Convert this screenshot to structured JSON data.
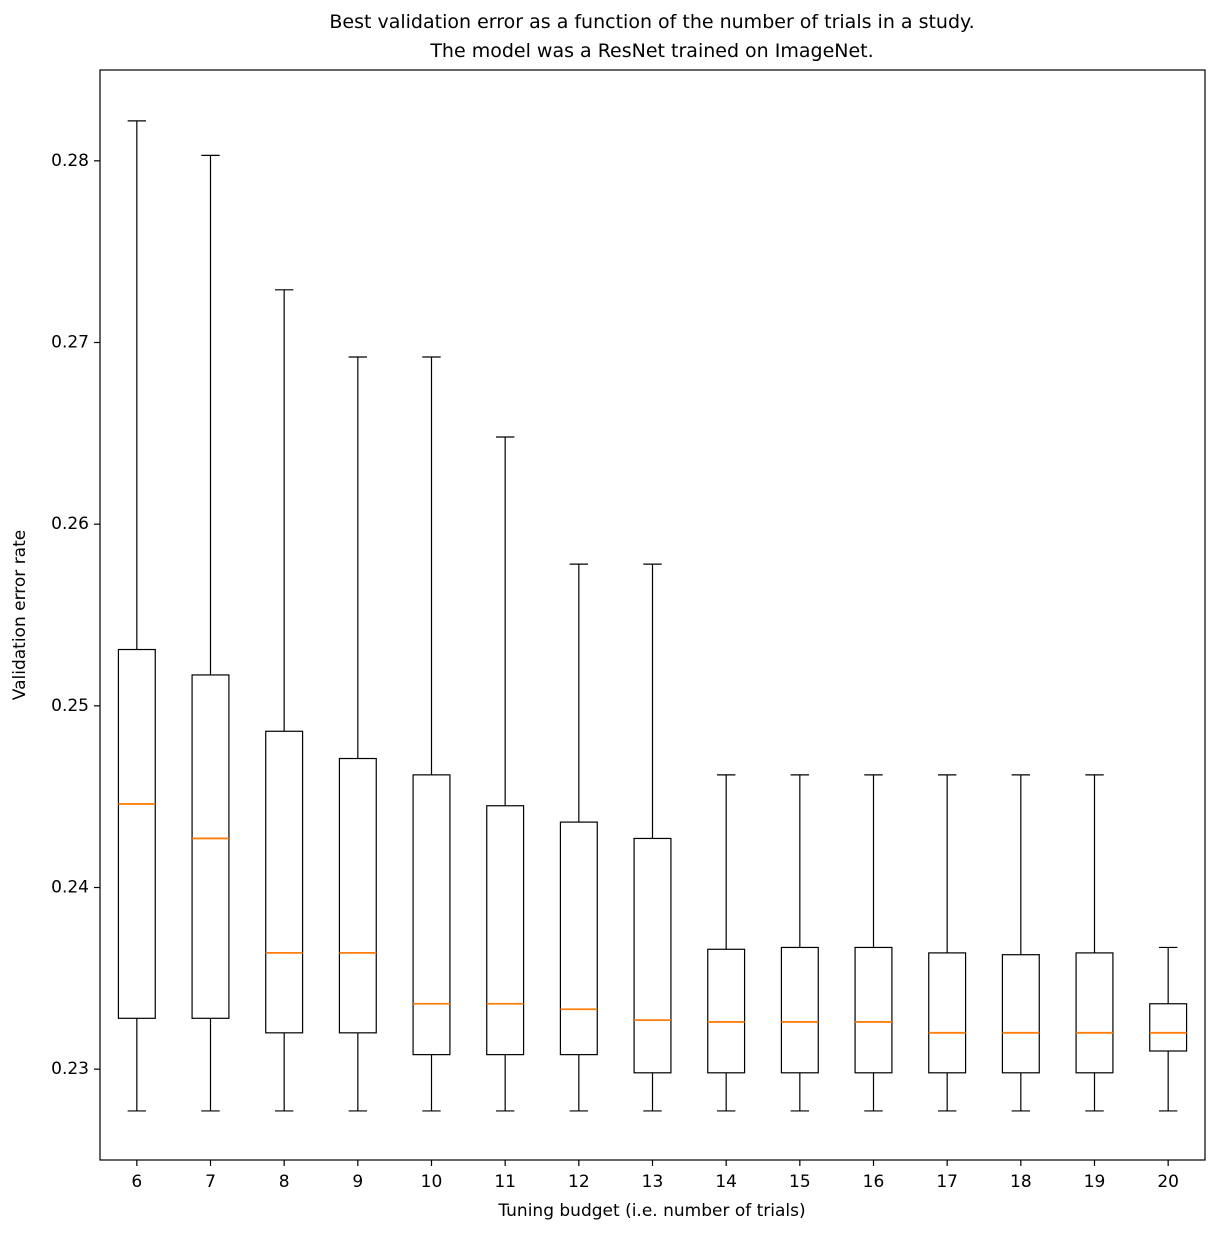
{
  "title": {
    "line1": "Best validation error as a function of the number of trials in a study.",
    "line2": "The model was a ResNet trained on ImageNet."
  },
  "chart_data": {
    "type": "boxplot",
    "title": "Best validation error as a function of the number of trials in a study. The model was a ResNet trained on ImageNet.",
    "xlabel": "Tuning budget (i.e. number of trials)",
    "ylabel": "Validation error rate",
    "ylim": [
      0.225,
      0.285
    ],
    "yticks": [
      0.23,
      0.24,
      0.25,
      0.26,
      0.27,
      0.28
    ],
    "grid": false,
    "legend": "none",
    "box_color": "#000000",
    "median_color": "#ff7f0e",
    "categories": [
      "6",
      "7",
      "8",
      "9",
      "10",
      "11",
      "12",
      "13",
      "14",
      "15",
      "16",
      "17",
      "18",
      "19",
      "20"
    ],
    "boxes": [
      {
        "whislo": 0.2277,
        "q1": 0.2328,
        "med": 0.2446,
        "q3": 0.2531,
        "whishi": 0.2822
      },
      {
        "whislo": 0.2277,
        "q1": 0.2328,
        "med": 0.2427,
        "q3": 0.2517,
        "whishi": 0.2803
      },
      {
        "whislo": 0.2277,
        "q1": 0.232,
        "med": 0.2364,
        "q3": 0.2486,
        "whishi": 0.2729
      },
      {
        "whislo": 0.2277,
        "q1": 0.232,
        "med": 0.2364,
        "q3": 0.2471,
        "whishi": 0.2692
      },
      {
        "whislo": 0.2277,
        "q1": 0.2308,
        "med": 0.2336,
        "q3": 0.2462,
        "whishi": 0.2692
      },
      {
        "whislo": 0.2277,
        "q1": 0.2308,
        "med": 0.2336,
        "q3": 0.2445,
        "whishi": 0.2648
      },
      {
        "whislo": 0.2277,
        "q1": 0.2308,
        "med": 0.2333,
        "q3": 0.2436,
        "whishi": 0.2578
      },
      {
        "whislo": 0.2277,
        "q1": 0.2298,
        "med": 0.2327,
        "q3": 0.2427,
        "whishi": 0.2578
      },
      {
        "whislo": 0.2277,
        "q1": 0.2298,
        "med": 0.2326,
        "q3": 0.2366,
        "whishi": 0.2462
      },
      {
        "whislo": 0.2277,
        "q1": 0.2298,
        "med": 0.2326,
        "q3": 0.2367,
        "whishi": 0.2462
      },
      {
        "whislo": 0.2277,
        "q1": 0.2298,
        "med": 0.2326,
        "q3": 0.2367,
        "whishi": 0.2462
      },
      {
        "whislo": 0.2277,
        "q1": 0.2298,
        "med": 0.232,
        "q3": 0.2364,
        "whishi": 0.2462
      },
      {
        "whislo": 0.2277,
        "q1": 0.2298,
        "med": 0.232,
        "q3": 0.2363,
        "whishi": 0.2462
      },
      {
        "whislo": 0.2277,
        "q1": 0.2298,
        "med": 0.232,
        "q3": 0.2364,
        "whishi": 0.2462
      },
      {
        "whislo": 0.2277,
        "q1": 0.231,
        "med": 0.232,
        "q3": 0.2336,
        "whishi": 0.2367
      }
    ]
  }
}
